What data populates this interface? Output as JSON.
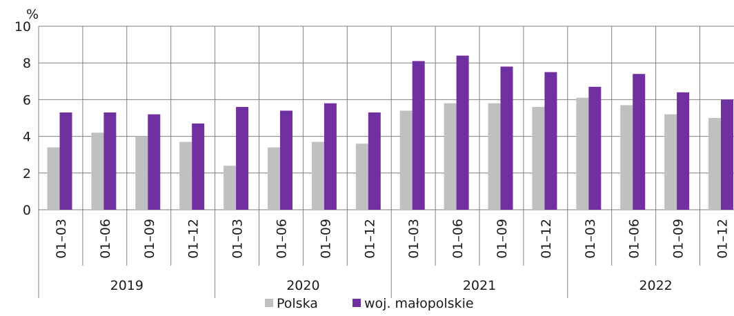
{
  "chart_data": {
    "type": "bar",
    "ylabel": "%",
    "ylim": [
      0,
      10
    ],
    "yticks": [
      0,
      2,
      4,
      6,
      8,
      10
    ],
    "grid": true,
    "legend_position": "bottom",
    "groups": [
      {
        "label": "2019",
        "categories": [
          "01–03",
          "01–06",
          "01–09",
          "01–12"
        ]
      },
      {
        "label": "2020",
        "categories": [
          "01–03",
          "01–06",
          "01–09",
          "01–12"
        ]
      },
      {
        "label": "2021",
        "categories": [
          "01–03",
          "01–06",
          "01–09",
          "01–12"
        ]
      },
      {
        "label": "2022",
        "categories": [
          "01–03",
          "01–06",
          "01–09",
          "01–12"
        ]
      }
    ],
    "series": [
      {
        "name": "Polska",
        "color": "#c0c0c0",
        "values": [
          3.4,
          4.2,
          4.0,
          3.7,
          2.4,
          3.4,
          3.7,
          3.6,
          5.4,
          5.8,
          5.8,
          5.6,
          6.1,
          5.7,
          5.2,
          5.0
        ]
      },
      {
        "name": "woj. małopolskie",
        "color": "#7030a0",
        "values": [
          5.3,
          5.3,
          5.2,
          4.7,
          5.6,
          5.4,
          5.8,
          5.3,
          8.1,
          8.4,
          7.8,
          7.5,
          6.7,
          7.4,
          6.4,
          6.0
        ]
      }
    ]
  }
}
